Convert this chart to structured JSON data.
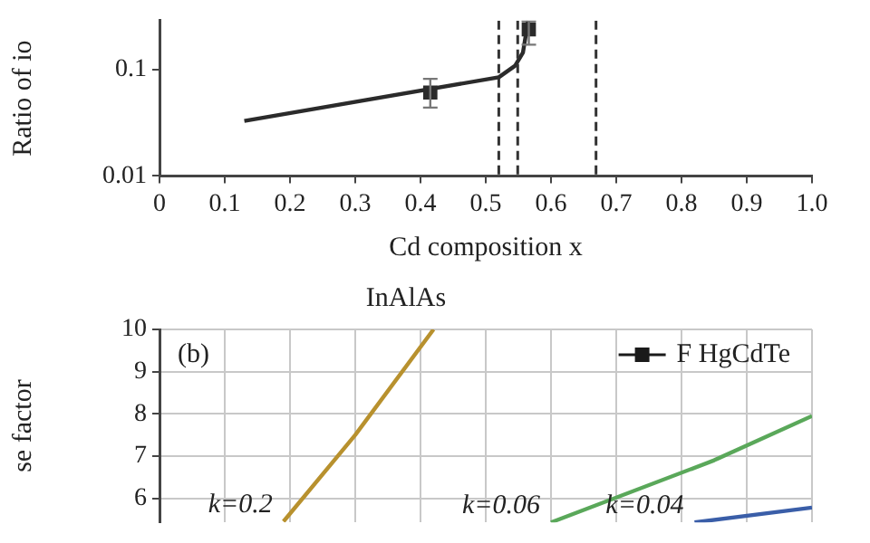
{
  "chart_data": [
    {
      "type": "line",
      "ylabel": "Ratio of io",
      "xlabel": "Cd composition x",
      "log": "y",
      "xlim": [
        0,
        1.0
      ],
      "xticks": [
        0,
        0.1,
        0.2,
        0.3,
        0.4,
        0.5,
        0.6,
        0.7,
        0.8,
        0.9,
        {
          "value": 1.0,
          "label": "1.0"
        }
      ],
      "ylim": [
        0.01,
        0.29
      ],
      "yticks": [
        0.01,
        0.1
      ],
      "grid": false,
      "legend": false,
      "series": [
        {
          "color": "#2b2b2b",
          "x": [
            0.13,
            0.52,
            0.545,
            0.557,
            0.565
          ],
          "values": [
            0.033,
            0.085,
            0.109,
            0.145,
            0.29
          ],
          "marker": "none"
        },
        {
          "type": "scatter",
          "color": "#2b2b2b",
          "x": [
            0.415,
            0.566
          ],
          "values": [
            0.061,
            0.24
          ],
          "errors": [
            [
              0.044,
              0.082
            ],
            [
              0.172,
              0.29
            ]
          ],
          "marker": "square"
        }
      ],
      "ref_lines": [
        {
          "axis": "x",
          "value": 0.52,
          "line_style": "dashed",
          "color": "#333333"
        },
        {
          "axis": "x",
          "value": 0.549,
          "line_style": "dashed",
          "color": "#333333"
        },
        {
          "axis": "x",
          "value": 0.669,
          "line_style": "dashed",
          "color": "#333333"
        }
      ]
    },
    {
      "type": "line",
      "title": "InAlAs",
      "ylabel": "se factor",
      "xlim": [
        0,
        1.0
      ],
      "xticks": [
        {
          "value": 0,
          "label": null
        },
        {
          "value": 0.1,
          "label": null
        },
        {
          "value": 0.2,
          "label": null
        },
        {
          "value": 0.3,
          "label": null
        },
        {
          "value": 0.4,
          "label": null
        },
        {
          "value": 0.5,
          "label": null
        },
        {
          "value": 0.6,
          "label": null
        },
        {
          "value": 0.7,
          "label": null
        },
        {
          "value": 0.8,
          "label": null
        },
        {
          "value": 0.9,
          "label": null
        },
        {
          "value": 1.0,
          "label": null
        }
      ],
      "ylim": [
        5.43,
        10
      ],
      "yticks": [
        6,
        7,
        8,
        9,
        10
      ],
      "tick_labels": "y",
      "grid": true,
      "legend": "top right",
      "series": [
        {
          "name": "k=0.2",
          "color": "#b8912e",
          "x": [
            0.19,
            0.3,
            0.42
          ],
          "values": [
            5.45,
            7.5,
            10
          ],
          "marker": "none"
        },
        {
          "name": "k=0.06",
          "color": "#5aa85a",
          "x": [
            0.6,
            0.85,
            1.0
          ],
          "values": [
            5.43,
            6.9,
            7.95
          ],
          "marker": "none"
        },
        {
          "name": "k=0.04",
          "color": "#3a5ea8",
          "x": [
            0.82,
            1.0
          ],
          "values": [
            5.43,
            5.78
          ],
          "marker": "none"
        },
        {
          "name": "F HgCdTe",
          "color": "#1a1a1a",
          "marker": "square"
        }
      ],
      "annotations": [
        "(b)"
      ]
    }
  ]
}
